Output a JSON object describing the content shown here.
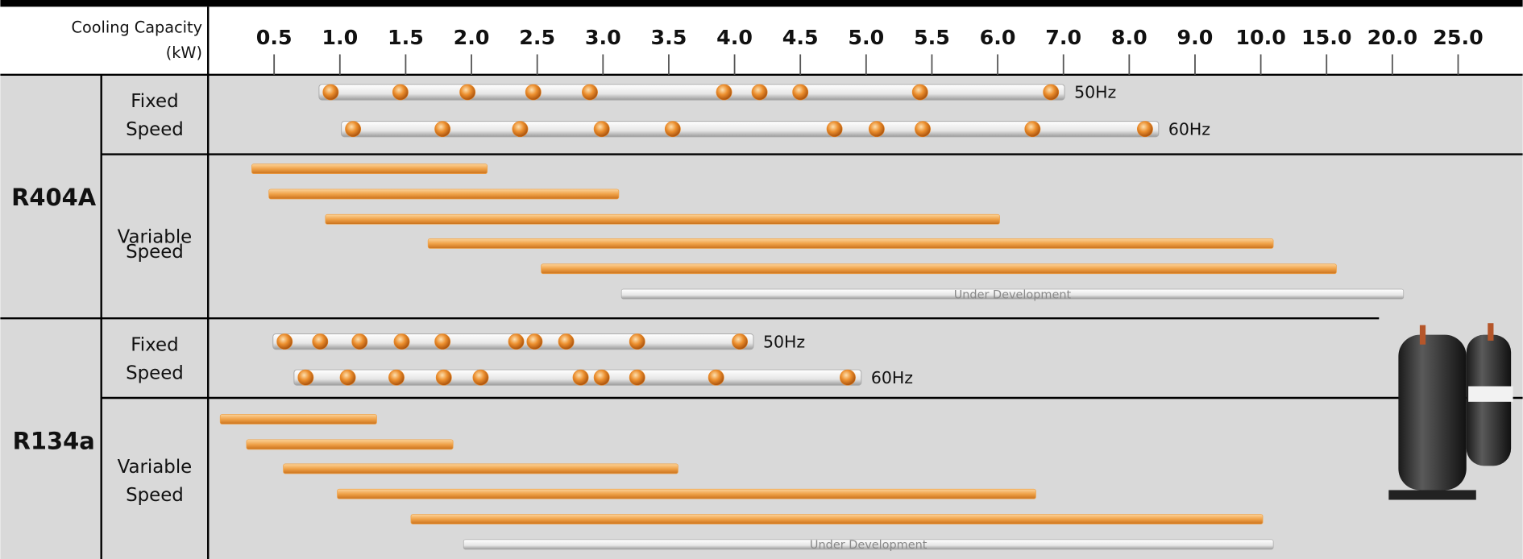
{
  "chart_data": {
    "type": "range-lineup",
    "axis_title": "Cooling Capacity",
    "axis_unit": "(kW)",
    "xticks": [
      0.5,
      {
        "value": 1,
        "label": "1.0"
      },
      1.5,
      {
        "value": 2,
        "label": "2.0"
      },
      2.5,
      {
        "value": 3,
        "label": "3.0"
      },
      3.5,
      {
        "value": 4,
        "label": "4.0"
      },
      4.5,
      {
        "value": 5,
        "label": "5.0"
      },
      5.5,
      {
        "value": 6,
        "label": "6.0"
      },
      {
        "value": 7,
        "label": "7.0"
      },
      {
        "value": 8,
        "label": "8.0"
      },
      {
        "value": 9,
        "label": "9.0"
      },
      {
        "value": 10,
        "label": "10.0"
      },
      {
        "value": 15,
        "label": "15.0"
      },
      {
        "value": 20,
        "label": "20.0"
      },
      {
        "value": 25,
        "label": "25.0"
      }
    ],
    "dot_color": "#e8892a",
    "bar_color": "#f0a248",
    "groups": [
      {
        "name": "R404A",
        "fixed": {
          "label": [
            "Fixed",
            "Speed"
          ],
          "series": [
            {
              "name": "50Hz",
              "values": [
                0.93,
                1.46,
                1.97,
                2.47,
                2.9,
                3.92,
                4.19,
                4.5,
                5.41,
                6.81
              ]
            },
            {
              "name": "60Hz",
              "values": [
                1.1,
                1.78,
                2.37,
                2.99,
                3.53,
                4.76,
                5.08,
                5.43,
                6.53,
                8.24
              ]
            }
          ]
        },
        "variable": {
          "label": [
            "Variable",
            "Speed"
          ],
          "ranges": [
            [
              0.33,
              2.12
            ],
            [
              0.46,
              3.12
            ],
            [
              0.89,
              6.03
            ],
            [
              1.67,
              10.95
            ],
            [
              2.53,
              15.75
            ]
          ],
          "development": {
            "label": "Under Development",
            "range": [
              3.14,
              20.85
            ]
          }
        }
      },
      {
        "name": "R134a",
        "fixed": {
          "label": [
            "Fixed",
            "Speed"
          ],
          "series": [
            {
              "name": "50Hz",
              "values": [
                0.58,
                0.85,
                1.15,
                1.47,
                1.78,
                2.34,
                2.48,
                2.72,
                3.26,
                4.04
              ]
            },
            {
              "name": "60Hz",
              "values": [
                0.74,
                1.06,
                1.43,
                1.79,
                2.07,
                2.83,
                2.99,
                3.26,
                3.86,
                4.86
              ]
            }
          ]
        },
        "variable": {
          "label": [
            "Variable",
            "Speed"
          ],
          "ranges": [
            [
              0.09,
              1.28
            ],
            [
              0.29,
              1.86
            ],
            [
              0.57,
              3.57
            ],
            [
              0.98,
              6.58
            ],
            [
              1.54,
              10.15
            ]
          ],
          "development": {
            "label": "Under Development",
            "range": [
              1.94,
              10.95
            ]
          }
        }
      }
    ]
  }
}
